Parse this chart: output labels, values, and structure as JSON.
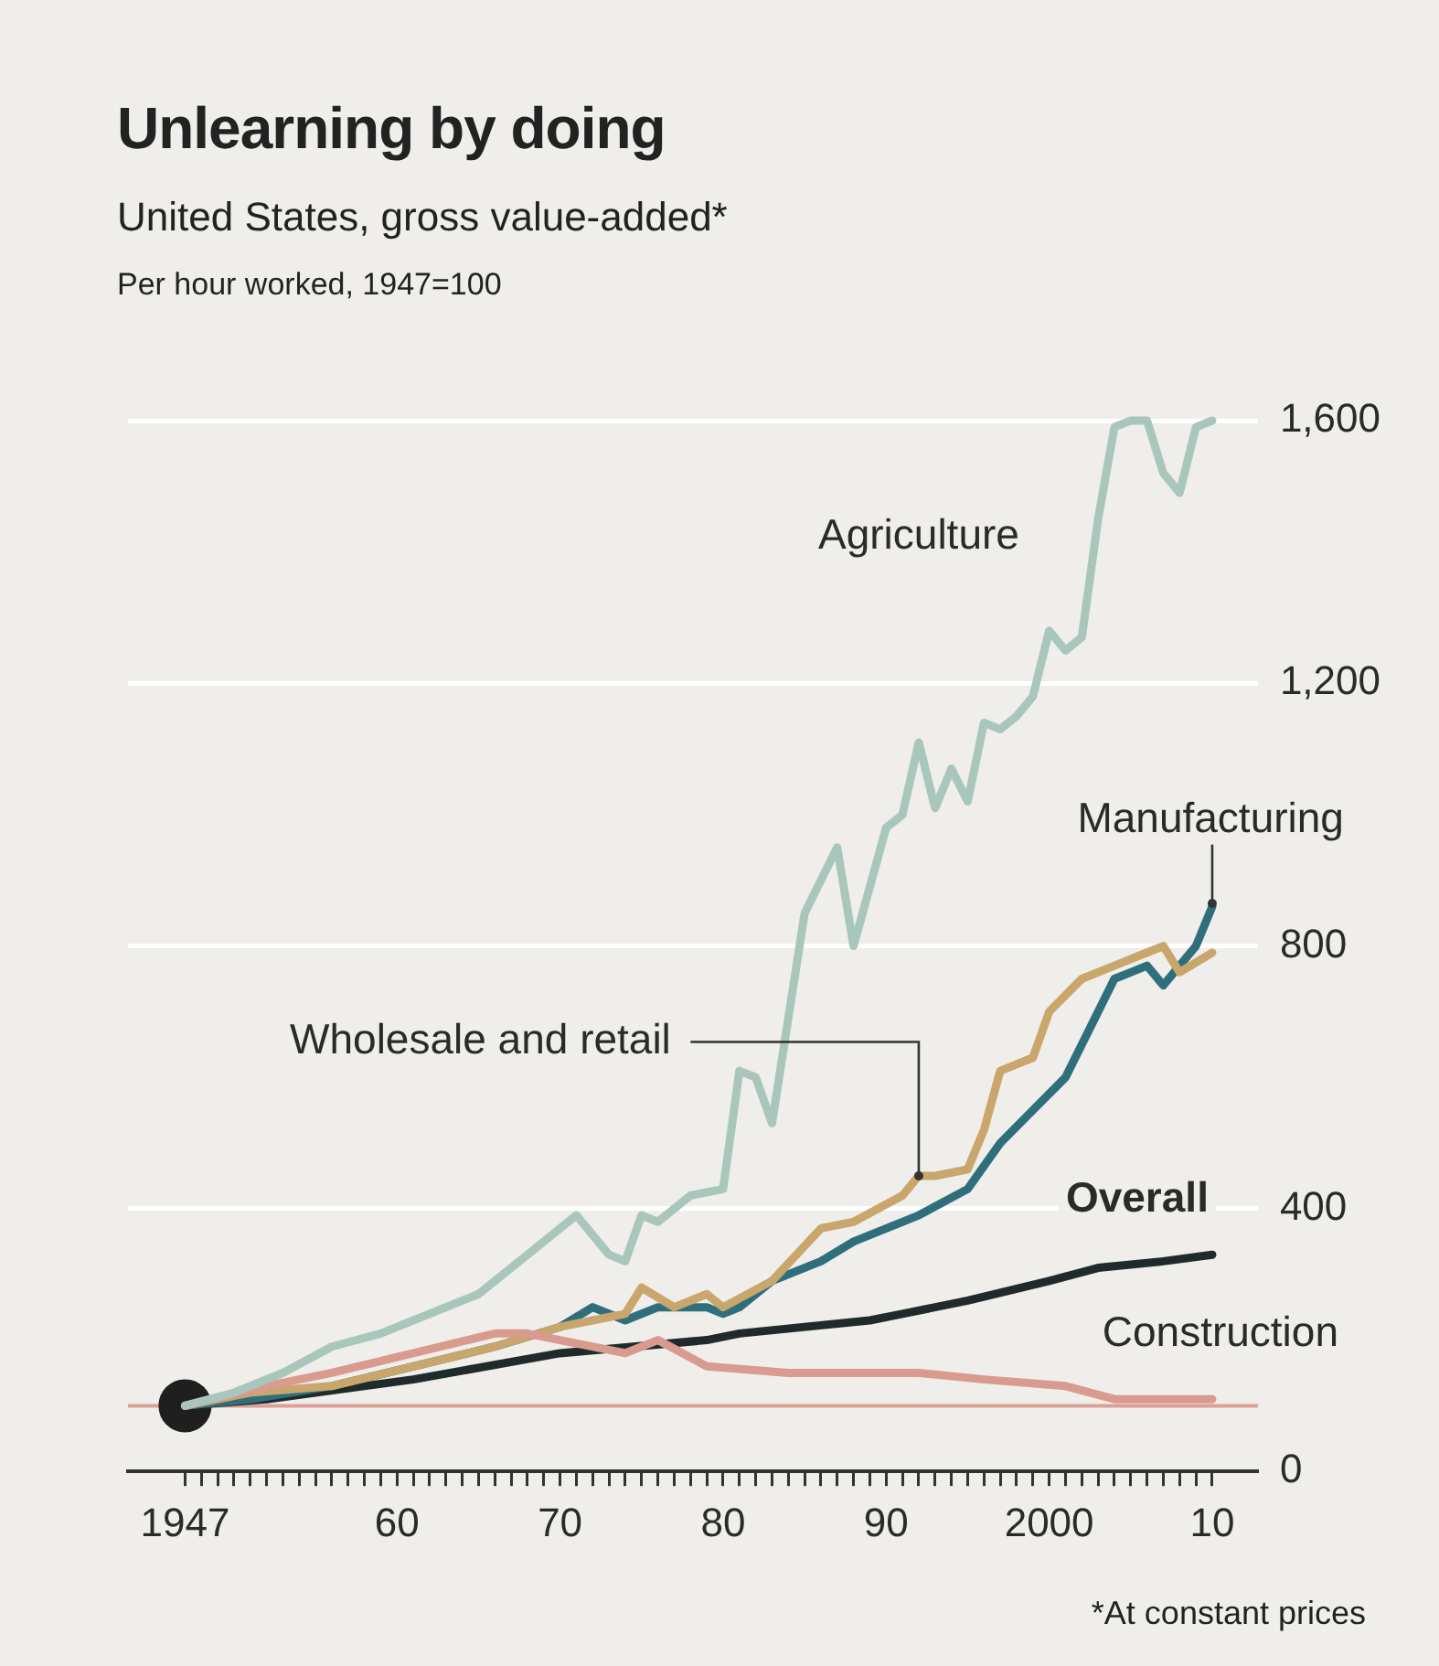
{
  "chart_data": {
    "type": "line",
    "title": "Unlearning by doing",
    "subtitle": "United States, gross value-added*",
    "ylabel": "Per hour worked, 1947=100",
    "annotations": [
      "*At constant prices"
    ],
    "xlim": [
      1943.5,
      2012.8
    ],
    "ylim": [
      0,
      1600
    ],
    "yticks": [
      0,
      {
        "value": 400,
        "label": "400"
      },
      {
        "value": 800,
        "label": "800"
      },
      {
        "value": 1200,
        "label": "1,200"
      },
      {
        "value": 1600,
        "label": "1,600"
      }
    ],
    "xticks": [
      {
        "value": 1947,
        "label": "1947"
      },
      {
        "value": 1948,
        "label": null
      },
      {
        "value": 1949,
        "label": null
      },
      {
        "value": 1950,
        "label": null
      },
      {
        "value": 1951,
        "label": null
      },
      {
        "value": 1952,
        "label": null
      },
      {
        "value": 1953,
        "label": null
      },
      {
        "value": 1954,
        "label": null
      },
      {
        "value": 1955,
        "label": null
      },
      {
        "value": 1956,
        "label": null
      },
      {
        "value": 1957,
        "label": null
      },
      {
        "value": 1958,
        "label": null
      },
      {
        "value": 1959,
        "label": null
      },
      {
        "value": 1960,
        "label": "60"
      },
      {
        "value": 1961,
        "label": null
      },
      {
        "value": 1962,
        "label": null
      },
      {
        "value": 1963,
        "label": null
      },
      {
        "value": 1964,
        "label": null
      },
      {
        "value": 1965,
        "label": null
      },
      {
        "value": 1966,
        "label": null
      },
      {
        "value": 1967,
        "label": null
      },
      {
        "value": 1968,
        "label": null
      },
      {
        "value": 1969,
        "label": null
      },
      {
        "value": 1970,
        "label": "70"
      },
      {
        "value": 1971,
        "label": null
      },
      {
        "value": 1972,
        "label": null
      },
      {
        "value": 1973,
        "label": null
      },
      {
        "value": 1974,
        "label": null
      },
      {
        "value": 1975,
        "label": null
      },
      {
        "value": 1976,
        "label": null
      },
      {
        "value": 1977,
        "label": null
      },
      {
        "value": 1978,
        "label": null
      },
      {
        "value": 1979,
        "label": null
      },
      {
        "value": 1980,
        "label": "80"
      },
      {
        "value": 1981,
        "label": null
      },
      {
        "value": 1982,
        "label": null
      },
      {
        "value": 1983,
        "label": null
      },
      {
        "value": 1984,
        "label": null
      },
      {
        "value": 1985,
        "label": null
      },
      {
        "value": 1986,
        "label": null
      },
      {
        "value": 1987,
        "label": null
      },
      {
        "value": 1988,
        "label": null
      },
      {
        "value": 1989,
        "label": null
      },
      {
        "value": 1990,
        "label": "90"
      },
      {
        "value": 1991,
        "label": null
      },
      {
        "value": 1992,
        "label": null
      },
      {
        "value": 1993,
        "label": null
      },
      {
        "value": 1994,
        "label": null
      },
      {
        "value": 1995,
        "label": null
      },
      {
        "value": 1996,
        "label": null
      },
      {
        "value": 1997,
        "label": null
      },
      {
        "value": 1998,
        "label": null
      },
      {
        "value": 1999,
        "label": null
      },
      {
        "value": 2000,
        "label": "2000"
      },
      {
        "value": 2001,
        "label": null
      },
      {
        "value": 2002,
        "label": null
      },
      {
        "value": 2003,
        "label": null
      },
      {
        "value": 2004,
        "label": null
      },
      {
        "value": 2005,
        "label": null
      },
      {
        "value": 2006,
        "label": null
      },
      {
        "value": 2007,
        "label": null
      },
      {
        "value": 2008,
        "label": null
      },
      {
        "value": 2009,
        "label": null
      },
      {
        "value": 2010,
        "label": "10"
      }
    ],
    "grid": "y",
    "marker": "none",
    "line_style": "solid",
    "ref_lines": [
      {
        "axis": "y",
        "value": 100,
        "color": "#dd9f97"
      }
    ],
    "series": [
      {
        "name": "Agriculture",
        "color": "#a9c6bd",
        "x": [
          1947,
          1950,
          1953,
          1956,
          1959,
          1961,
          1965,
          1968,
          1971,
          1973,
          1974,
          1975,
          1976,
          1978,
          1980,
          1981,
          1982,
          1983,
          1985,
          1987,
          1988,
          1990,
          1991,
          1992,
          1993,
          1994,
          1995,
          1996,
          1997,
          1998,
          1999,
          2000,
          2001,
          2002,
          2003,
          2004,
          2005,
          2006,
          2007,
          2008,
          2009,
          2010
        ],
        "values": [
          100,
          120,
          150,
          190,
          210,
          230,
          270,
          330,
          390,
          330,
          320,
          390,
          380,
          420,
          430,
          610,
          600,
          530,
          850,
          950,
          800,
          980,
          1000,
          1110,
          1010,
          1070,
          1020,
          1140,
          1130,
          1150,
          1180,
          1280,
          1250,
          1270,
          1450,
          1590,
          1600,
          1600,
          1520,
          1490,
          1590,
          1600
        ]
      },
      {
        "name": "Construction",
        "color": "#d99b90",
        "x": [
          1947,
          1952,
          1956,
          1961,
          1966,
          1968,
          1970,
          1974,
          1976,
          1979,
          1984,
          1989,
          1992,
          1996,
          2001,
          2004,
          2008,
          2010
        ],
        "values": [
          100,
          130,
          150,
          180,
          210,
          210,
          200,
          180,
          200,
          160,
          150,
          150,
          150,
          140,
          130,
          110,
          110,
          110
        ]
      },
      {
        "name": "Wholesale and retail",
        "color": "#c8a66c",
        "x": [
          1947,
          1951,
          1956,
          1961,
          1966,
          1970,
          1972,
          1974,
          1975,
          1977,
          1979,
          1980,
          1983,
          1986,
          1988,
          1991,
          1992,
          1993,
          1995,
          1996,
          1997,
          1999,
          2000,
          2002,
          2004,
          2006,
          2007,
          2008,
          2010
        ],
        "values": [
          100,
          120,
          130,
          160,
          190,
          220,
          230,
          240,
          280,
          250,
          270,
          250,
          290,
          370,
          380,
          420,
          450,
          450,
          460,
          520,
          610,
          630,
          700,
          750,
          770,
          790,
          800,
          760,
          790
        ]
      },
      {
        "name": "Manufacturing",
        "color": "#2f6f7c",
        "x": [
          1947,
          1951,
          1956,
          1961,
          1966,
          1970,
          1972,
          1974,
          1976,
          1979,
          1980,
          1981,
          1983,
          1986,
          1988,
          1992,
          1995,
          1997,
          1999,
          2001,
          2003,
          2004,
          2005,
          2006,
          2007,
          2008,
          2009,
          2010
        ],
        "values": [
          100,
          110,
          130,
          160,
          190,
          220,
          250,
          230,
          250,
          250,
          240,
          250,
          290,
          320,
          350,
          390,
          430,
          500,
          550,
          600,
          700,
          750,
          760,
          770,
          740,
          770,
          800,
          860
        ]
      },
      {
        "name": "Overall",
        "color": "#1f2b2b",
        "x": [
          1947,
          1952,
          1961,
          1970,
          1979,
          1981,
          1989,
          1991,
          1995,
          2000,
          2003,
          2007,
          2010
        ],
        "values": [
          100,
          110,
          140,
          180,
          200,
          210,
          230,
          240,
          260,
          290,
          310,
          320,
          330
        ]
      },
      {
        "type": "scatter",
        "marker": "circle",
        "color": "#1f1f1f",
        "x": [
          1947
        ],
        "values": [
          100
        ]
      }
    ]
  }
}
